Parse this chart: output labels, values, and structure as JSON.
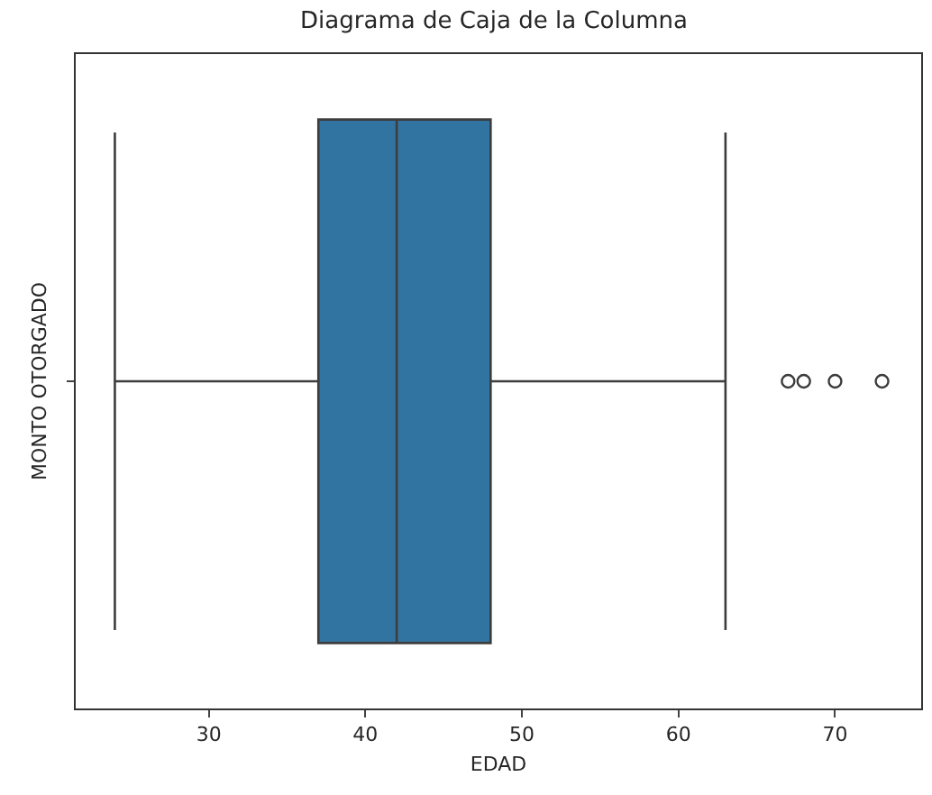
{
  "chart_data": {
    "type": "box",
    "title": "Diagrama de Caja de la Columna",
    "xlabel": "EDAD",
    "ylabel": "MONTO OTORGADO",
    "orientation": "horizontal",
    "categories": [
      null
    ],
    "series": [
      {
        "color": "#3274a1",
        "boxes": [
          {
            "low": 24,
            "q1": 37,
            "median": 42,
            "q3": 48,
            "high": 63,
            "outliers": [
              67,
              68,
              70,
              73
            ]
          }
        ]
      }
    ],
    "xlim": [
      21.5,
      75.5
    ],
    "xticks": [
      30,
      40,
      50,
      60,
      70
    ]
  }
}
